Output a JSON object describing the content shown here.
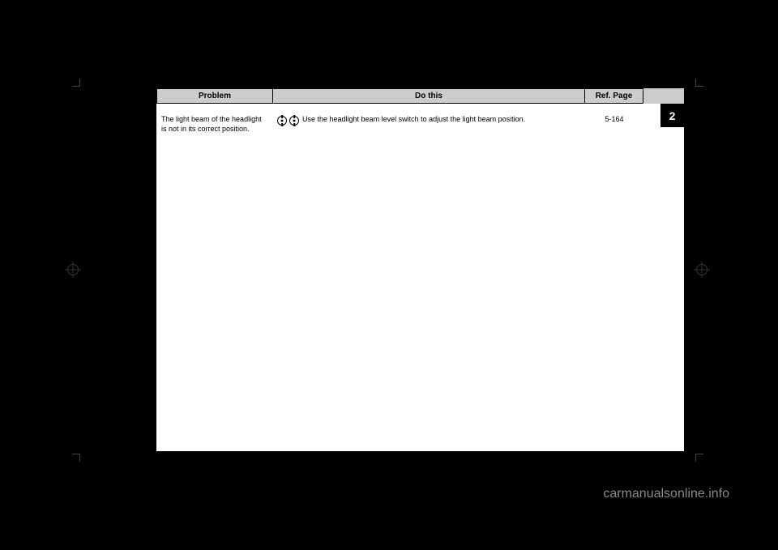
{
  "header": {
    "problem": "Problem",
    "dothis": "Do this",
    "ref": "Ref. Page"
  },
  "tab": "2",
  "row": {
    "problem": "The light beam of the headlight is not in its correct position.",
    "dothis": "Use the headlight beam level switch to adjust the light beam position.",
    "ref": "5-164"
  },
  "watermark": "carmanualsonline.info"
}
